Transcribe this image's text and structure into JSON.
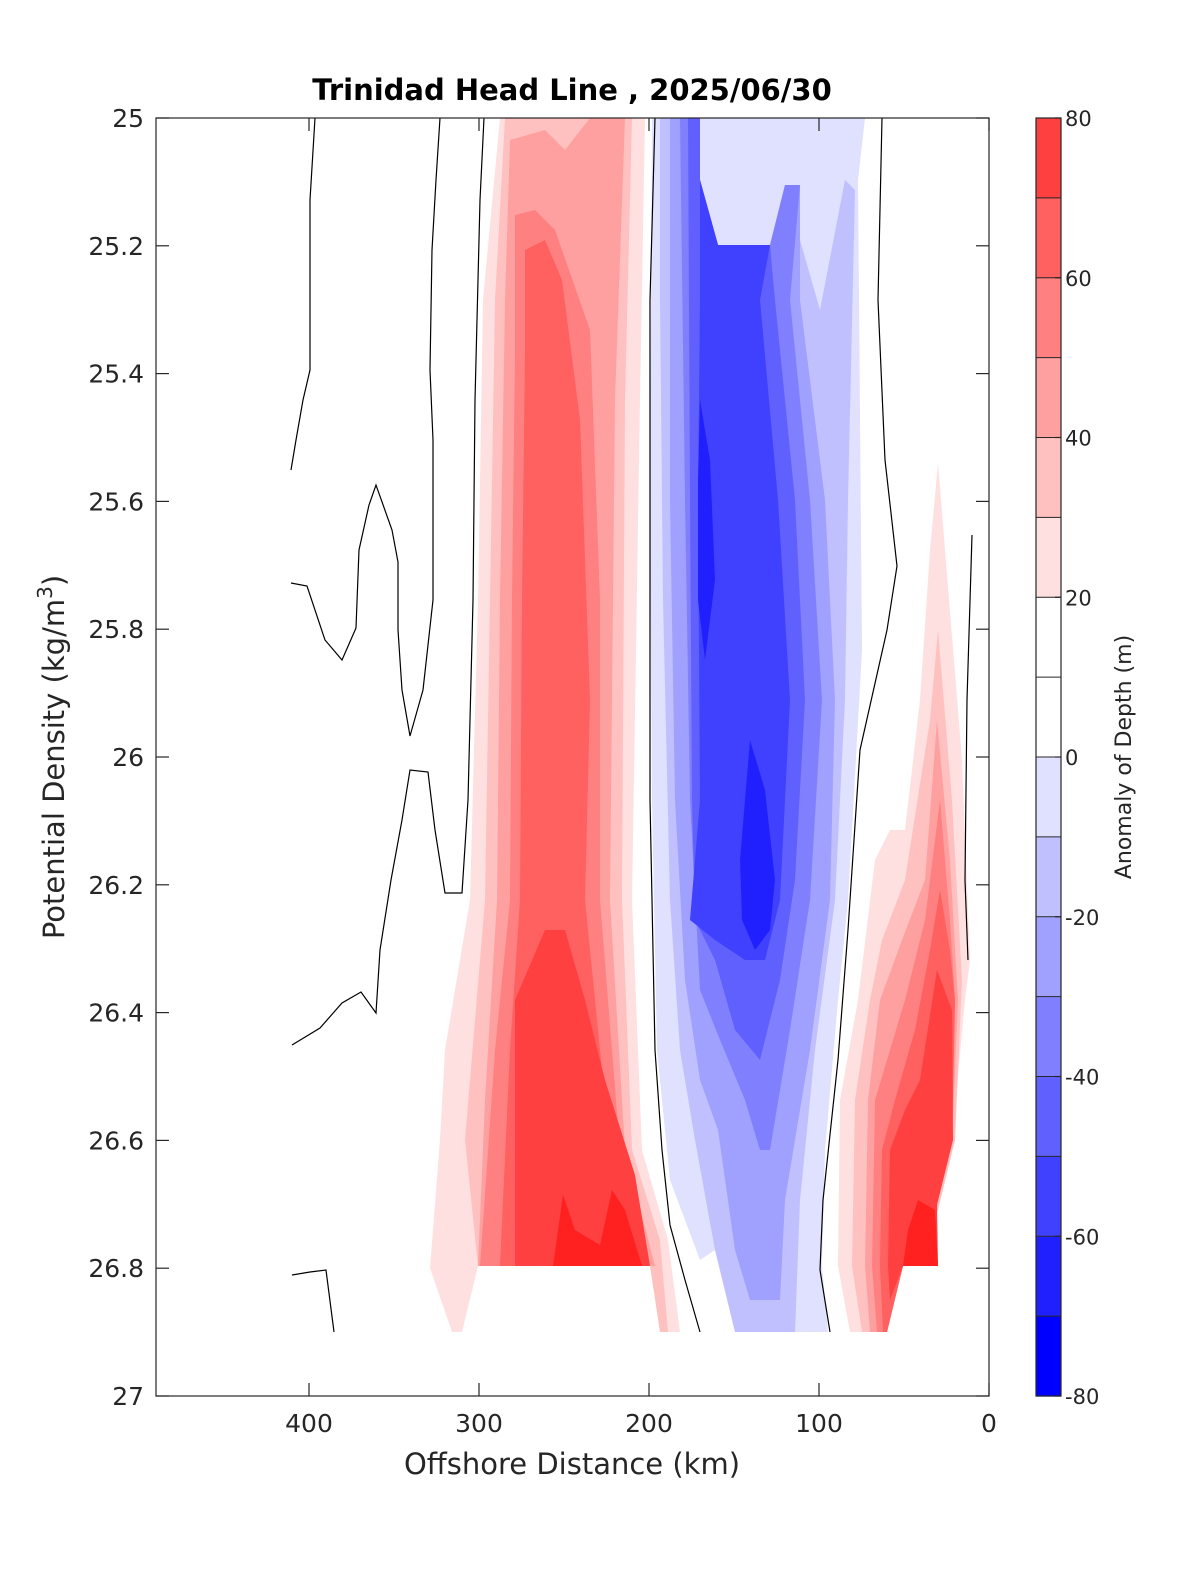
{
  "chart_data": {
    "type": "heatmap",
    "title": "Trinidad Head Line , 2025/06/30",
    "xlabel": "Offshore Distance (km)",
    "ylabel": "Potential Density (kg/m3)",
    "ylabel_main": "Potential Density (kg/m",
    "ylabel_sup": "3",
    "ylabel_close": ")",
    "xlim": [
      490,
      0
    ],
    "ylim": [
      25,
      27
    ],
    "x_reversed": true,
    "y_reversed": true,
    "x_ticks": [
      400,
      300,
      200,
      100,
      0
    ],
    "y_ticks": [
      25,
      25.2,
      25.4,
      25.6,
      25.8,
      26,
      26.2,
      26.4,
      26.6,
      26.8,
      27
    ],
    "y_tick_labels": [
      "25",
      "25.2",
      "25.4",
      "25.6",
      "25.8",
      "26",
      "26.2",
      "26.4",
      "26.6",
      "26.8",
      "27"
    ],
    "grid": false,
    "colorbar": {
      "label": "Anomaly of Depth (m)",
      "range": [
        -80,
        80
      ],
      "levels": [
        -80,
        -70,
        -60,
        -50,
        -40,
        -30,
        -20,
        -10,
        0,
        10,
        20,
        30,
        40,
        50,
        60,
        70,
        80
      ],
      "tick_values": [
        80,
        60,
        40,
        20,
        0,
        -20,
        -40,
        -60,
        -80
      ],
      "tick_labels": [
        "80",
        "60",
        "40",
        "20",
        "0",
        "-20",
        "-40",
        "-60",
        "-80"
      ],
      "colors": [
        "#0000ff",
        "#2020ff",
        "#4040ff",
        "#6060ff",
        "#8080ff",
        "#a0a0ff",
        "#c0c0ff",
        "#e0e0ff",
        "#ffffff",
        "#ffffff",
        "#ffe0e0",
        "#ffc0c0",
        "#ffa0a0",
        "#ff8080",
        "#ff6060",
        "#ff4040",
        "#ff2020",
        "#ff0000"
      ]
    },
    "anomaly_bands": [
      {
        "x": [
          315,
          130
        ],
        "y": [
          25,
          26.9
        ],
        "anomaly": 15
      },
      {
        "x": [
          300,
          195
        ],
        "y": [
          25,
          26.85
        ],
        "anomaly": 25
      },
      {
        "x": [
          290,
          205
        ],
        "y": [
          25,
          26.8
        ],
        "anomaly": 35
      },
      {
        "x": [
          280,
          215
        ],
        "y": [
          25.15,
          26.8
        ],
        "anomaly": 45
      },
      {
        "x": [
          270,
          228
        ],
        "y": [
          25.3,
          26.8
        ],
        "anomaly": 55
      },
      {
        "x": [
          260,
          205
        ],
        "y": [
          26.3,
          26.8
        ],
        "anomaly": 65
      },
      {
        "x": [
          235,
          208
        ],
        "y": [
          26.7,
          26.8
        ],
        "anomaly": 72
      },
      {
        "x": [
          195,
          75
        ],
        "y": [
          25,
          26.9
        ],
        "anomaly": -15
      },
      {
        "x": [
          185,
          85
        ],
        "y": [
          25,
          26.9
        ],
        "anomaly": -25
      },
      {
        "x": [
          175,
          95
        ],
        "y": [
          25.1,
          26.8
        ],
        "anomaly": -35
      },
      {
        "x": [
          170,
          108
        ],
        "y": [
          25.2,
          26.6
        ],
        "anomaly": -45
      },
      {
        "x": [
          165,
          120
        ],
        "y": [
          25.3,
          26.4
        ],
        "anomaly": -55
      },
      {
        "x": [
          150,
          128
        ],
        "y": [
          26,
          26.3
        ],
        "anomaly": -65
      },
      {
        "x": [
          170,
          160
        ],
        "y": [
          25.5,
          25.9
        ],
        "anomaly": -65
      },
      {
        "x": [
          80,
          15
        ],
        "y": [
          25.55,
          26.9
        ],
        "anomaly": 15
      },
      {
        "x": [
          70,
          18
        ],
        "y": [
          26.1,
          26.9
        ],
        "anomaly": 25
      },
      {
        "x": [
          55,
          20
        ],
        "y": [
          26.25,
          26.9
        ],
        "anomaly": 45
      },
      {
        "x": [
          50,
          22
        ],
        "y": [
          26.45,
          26.8
        ],
        "anomaly": 55
      }
    ]
  }
}
